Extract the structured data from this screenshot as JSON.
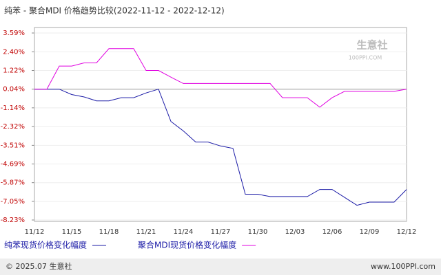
{
  "chart_data": {
    "type": "line",
    "title": "纯苯 - 聚合MDI 价格趋势比较(2022-11-12 - 2022-12-12)",
    "categories": [
      "11/12",
      null,
      null,
      "11/15",
      null,
      null,
      "11/18",
      null,
      null,
      "11/21",
      null,
      null,
      "11/24",
      null,
      null,
      "11/27",
      null,
      null,
      "11/30",
      null,
      null,
      "12/03",
      null,
      null,
      "12/06",
      null,
      null,
      "12/09",
      null,
      null,
      "12/12"
    ],
    "series": [
      {
        "name": "纯苯现货价格变化幅度",
        "color": "#1a1aa6",
        "values": [
          0.04,
          0.04,
          0.04,
          -0.3,
          -0.45,
          -0.7,
          -0.7,
          -0.5,
          -0.5,
          -0.2,
          0.04,
          -2.0,
          -2.6,
          -3.3,
          -3.3,
          -3.55,
          -3.7,
          -6.6,
          -6.6,
          -6.75,
          -6.75,
          -6.75,
          -6.75,
          -6.3,
          -6.3,
          -6.8,
          -7.3,
          -7.1,
          -7.1,
          -7.1,
          -6.3
        ]
      },
      {
        "name": "聚合MDI现货价格变化幅度",
        "color": "#e000e0",
        "values": [
          0.04,
          0.04,
          1.5,
          1.5,
          1.7,
          1.7,
          2.6,
          2.6,
          2.6,
          1.22,
          1.22,
          0.8,
          0.4,
          0.4,
          0.4,
          0.4,
          0.4,
          0.4,
          0.4,
          0.4,
          -0.5,
          -0.5,
          -0.5,
          -1.1,
          -0.5,
          -0.1,
          -0.1,
          -0.1,
          -0.1,
          -0.1,
          0.04
        ]
      }
    ],
    "ylim": [
      -8.23,
      3.59
    ],
    "yticks": [
      {
        "value": 3.59,
        "label": "3.59%"
      },
      {
        "value": 2.4,
        "label": "2.40%"
      },
      {
        "value": 1.22,
        "label": "1.22%"
      },
      {
        "value": 0.04,
        "label": "0.04%"
      },
      {
        "value": -1.14,
        "label": "-1.14%"
      },
      {
        "value": -2.32,
        "label": "-2.32%"
      },
      {
        "value": -3.51,
        "label": "-3.51%"
      },
      {
        "value": -4.69,
        "label": "-4.69%"
      },
      {
        "value": -5.87,
        "label": "-5.87%"
      },
      {
        "value": -7.05,
        "label": "-7.05%"
      },
      {
        "value": -8.23,
        "label": "-8.23%"
      }
    ],
    "grid": true,
    "watermark": "生意社",
    "watermark_sub": "100PPI.COM",
    "footer_left": "© 2025.07 生意社",
    "footer_right": "www.100PPI.com"
  }
}
